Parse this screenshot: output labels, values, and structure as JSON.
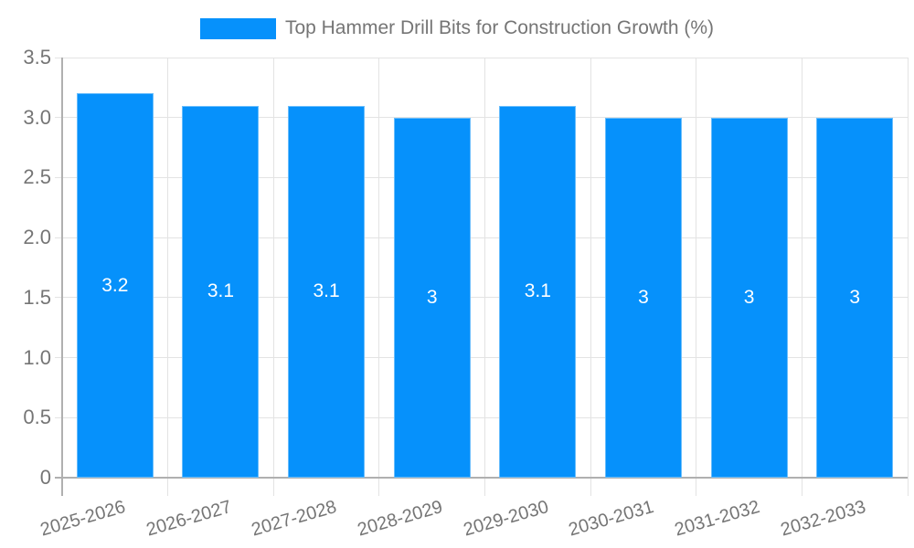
{
  "chart_data": {
    "type": "bar",
    "title": "Top Hammer Drill Bits for Construction Growth (%)",
    "legend": {
      "label": "Top Hammer Drill Bits for Construction Growth (%)",
      "position": "top"
    },
    "categories": [
      "2025-2026",
      "2026-2027",
      "2027-2028",
      "2028-2029",
      "2029-2030",
      "2030-2031",
      "2031-2032",
      "2032-2033"
    ],
    "values": [
      3.2,
      3.1,
      3.1,
      3,
      3.1,
      3,
      3,
      3
    ],
    "value_labels": [
      "3.2",
      "3.1",
      "3.1",
      "3",
      "3.1",
      "3",
      "3",
      "3"
    ],
    "xlabel": "",
    "ylabel": "",
    "ylim": [
      0,
      3.5
    ],
    "ytick_labels": [
      "0",
      "0.5",
      "1.0",
      "1.5",
      "2.0",
      "2.5",
      "3.0",
      "3.5"
    ],
    "ytick_values": [
      0,
      0.5,
      1.0,
      1.5,
      2.0,
      2.5,
      3.0,
      3.5
    ],
    "grid": true,
    "colors": {
      "bar": "#0691FB",
      "value_label": "#ffffff",
      "axis_text": "#757575",
      "gridline": "#e3e3e3",
      "axis_line": "#b0b0b0",
      "background": "#ffffff"
    }
  }
}
